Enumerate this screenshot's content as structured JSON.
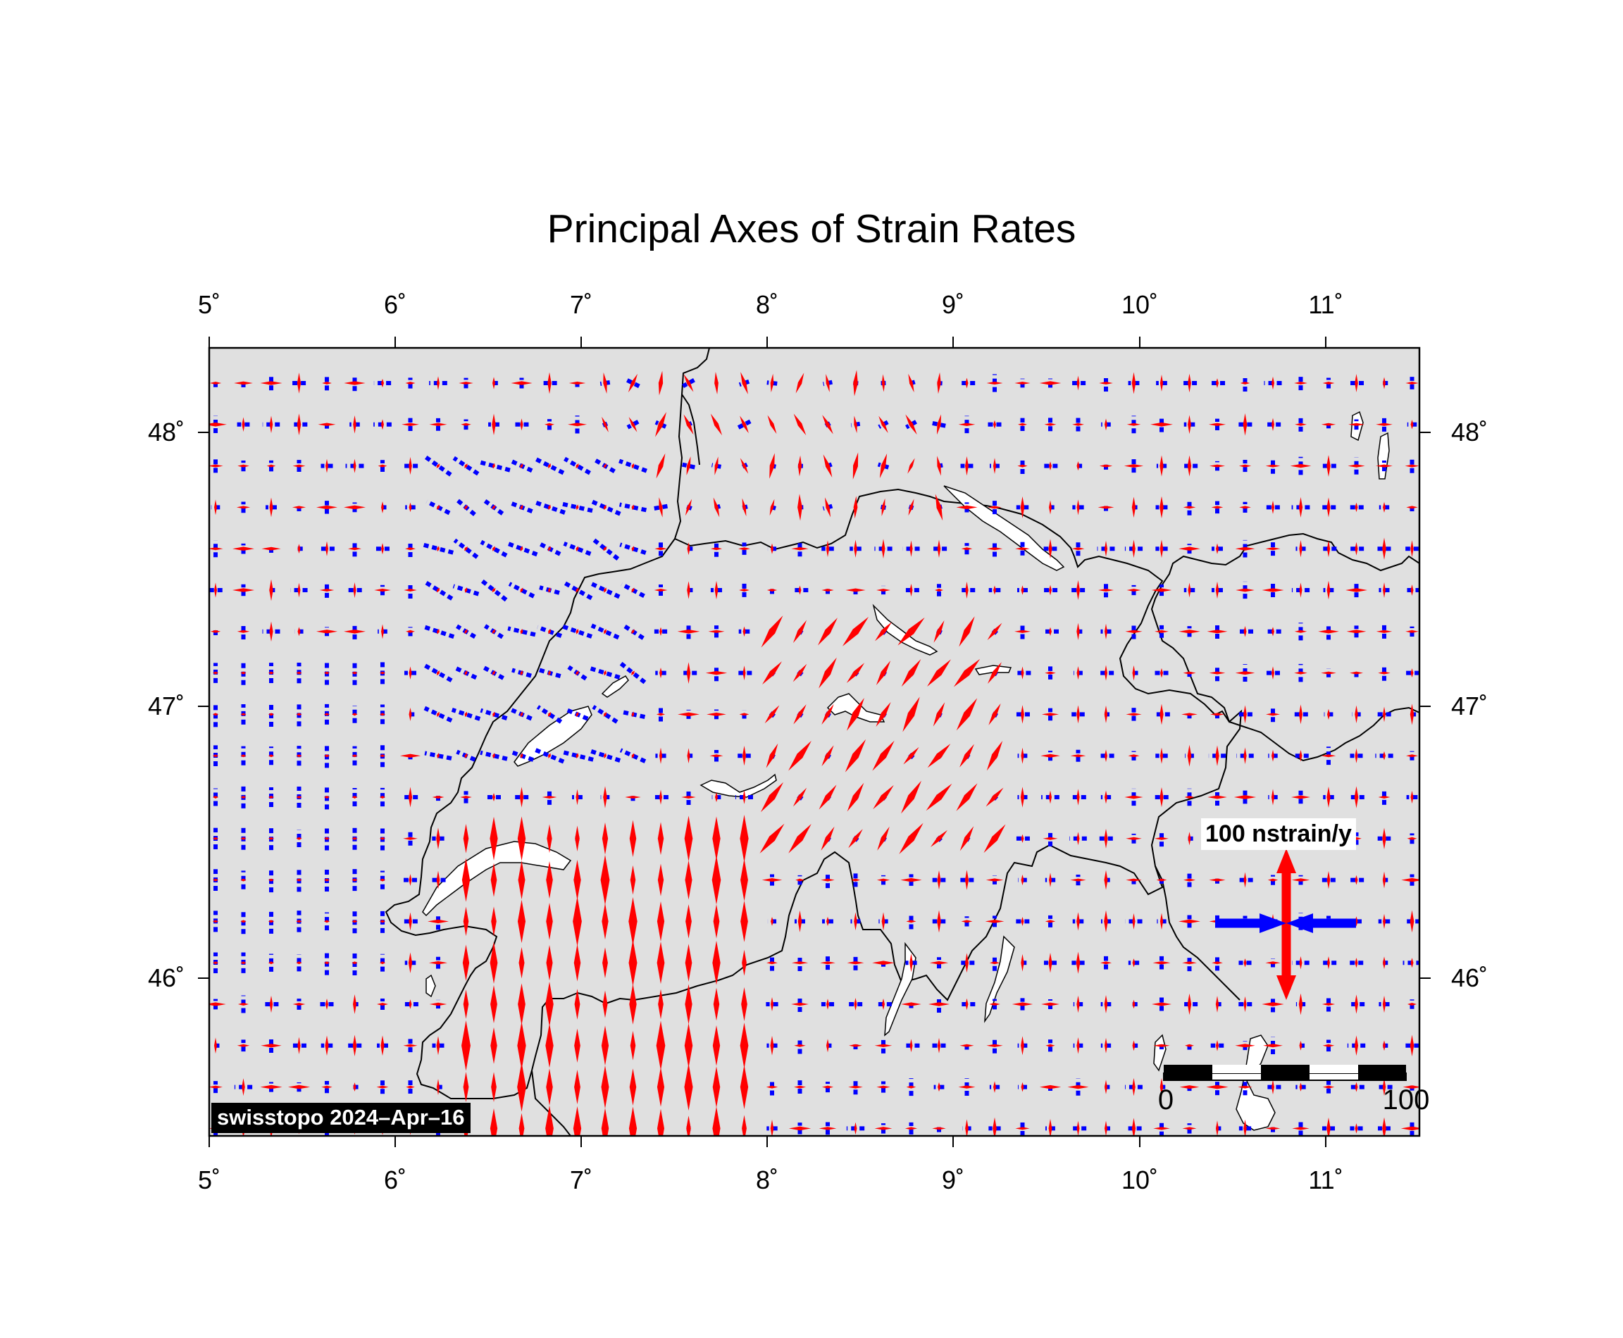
{
  "title": "Principal Axes of Strain Rates",
  "map": {
    "lon_range": [
      5,
      11.5
    ],
    "lat_range": [
      45.42,
      48.3
    ],
    "background_color": "#e0e0e0",
    "border_color": "#000000",
    "lake_color": "#ffffff",
    "extension_color": "#ff0000",
    "compression_color": "#0000ff"
  },
  "axis_ticks": {
    "lon": [
      "5˚",
      "6˚",
      "7˚",
      "8˚",
      "9˚",
      "10˚",
      "11˚"
    ],
    "lat": [
      "48˚",
      "47˚",
      "46˚"
    ]
  },
  "legend": {
    "label": "100 nstrain/y",
    "extension_symbol": "red-double-arrow-icon",
    "compression_symbol": "blue-converging-arrows-icon"
  },
  "scale_bar": {
    "start_label": "0",
    "end_label": "100"
  },
  "credit": "swisstopo 2024–Apr–16"
}
